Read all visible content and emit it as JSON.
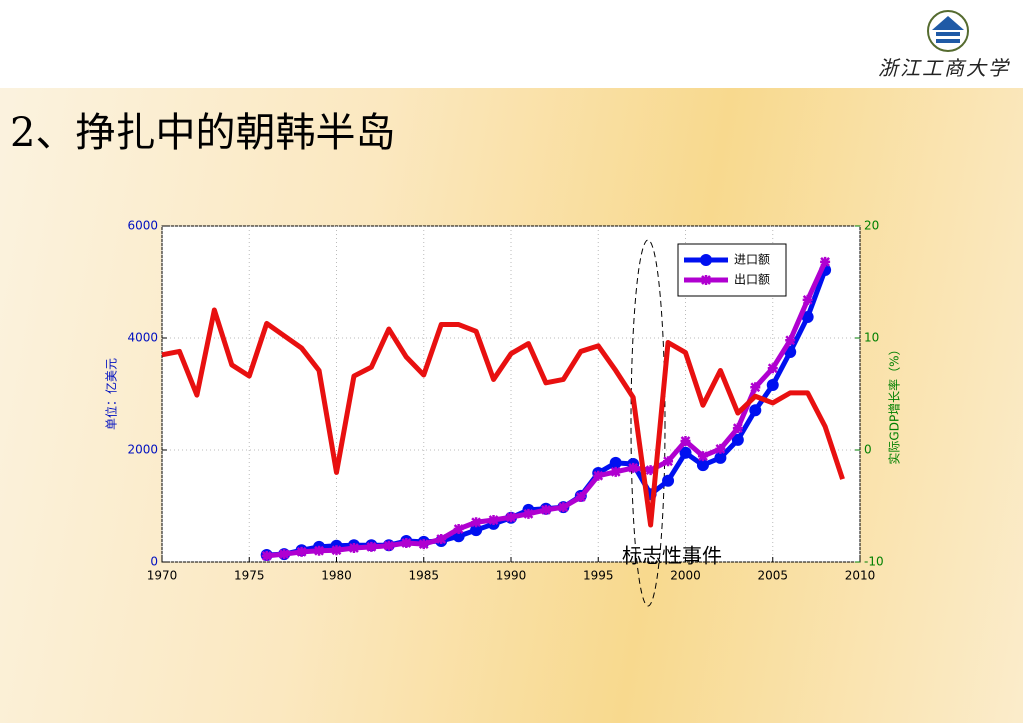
{
  "header": {
    "logo_text": "浙江工商大学"
  },
  "title": "2、挣扎中的朝韩半岛",
  "chart_data": {
    "type": "line",
    "ylabel": "单位：亿美元",
    "y2label": "实际GDP增长率（%）",
    "annotation": "标志性事件",
    "xlim": [
      1970,
      2010
    ],
    "xticks": [
      1970,
      1975,
      1980,
      1985,
      1990,
      1995,
      2000,
      2005,
      2010
    ],
    "ylim": [
      0,
      6000
    ],
    "yticks": [
      0,
      2000,
      4000,
      6000
    ],
    "y2lim": [
      -10,
      20
    ],
    "y2ticks": [
      -10,
      0,
      10,
      20
    ],
    "grid": true,
    "legend": "upper right",
    "series": [
      {
        "name": "进口额",
        "color": "#0010f0",
        "marker": "circle",
        "x": [
          1976,
          1977,
          1978,
          1979,
          1980,
          1981,
          1982,
          1983,
          1984,
          1985,
          1986,
          1987,
          1988,
          1989,
          1990,
          1991,
          1992,
          1993,
          1994,
          1995,
          1996,
          1997,
          1998,
          1999,
          2000,
          2001,
          2002,
          2003,
          2004,
          2005,
          2006,
          2007,
          2008
        ],
        "values": [
          125,
          140,
          210,
          270,
          290,
          300,
          300,
          300,
          375,
          360,
          375,
          460,
          570,
          680,
          790,
          930,
          950,
          980,
          1180,
          1590,
          1770,
          1750,
          1210,
          1450,
          1950,
          1730,
          1860,
          2180,
          2710,
          3160,
          3750,
          4375,
          5214
        ]
      },
      {
        "name": "出口额",
        "color": "#b000d0",
        "marker": "star",
        "x": [
          1976,
          1977,
          1978,
          1979,
          1980,
          1981,
          1982,
          1983,
          1984,
          1985,
          1986,
          1987,
          1988,
          1989,
          1990,
          1991,
          1992,
          1993,
          1994,
          1995,
          1996,
          1997,
          1998,
          1999,
          2000,
          2001,
          2002,
          2003,
          2004,
          2005,
          2006,
          2007,
          2008
        ],
        "values": [
          110,
          140,
          180,
          200,
          210,
          250,
          270,
          290,
          340,
          320,
          410,
          590,
          710,
          750,
          800,
          860,
          930,
          980,
          1160,
          1540,
          1610,
          1680,
          1640,
          1800,
          2160,
          1890,
          2020,
          2390,
          3120,
          3460,
          3960,
          4680,
          5360
        ]
      },
      {
        "color": "#e81010",
        "axis": "y2",
        "x": [
          1970,
          1971,
          1972,
          1973,
          1974,
          1975,
          1976,
          1977,
          1978,
          1979,
          1980,
          1981,
          1982,
          1983,
          1984,
          1985,
          1986,
          1987,
          1988,
          1989,
          1990,
          1991,
          1992,
          1993,
          1994,
          1995,
          1996,
          1997,
          1998,
          1999,
          2000,
          2001,
          2002,
          2003,
          2004,
          2005,
          2006,
          2007,
          2008,
          2009
        ],
        "values": [
          8.5,
          8.8,
          4.9,
          12.5,
          7.6,
          6.6,
          11.3,
          10.2,
          9.1,
          7.1,
          -2.0,
          6.6,
          7.4,
          10.8,
          8.3,
          6.7,
          11.2,
          11.2,
          10.6,
          6.3,
          8.6,
          9.5,
          6.0,
          6.3,
          8.8,
          9.3,
          7.1,
          4.7,
          -6.7,
          9.6,
          8.7,
          4.0,
          7.1,
          3.3,
          4.8,
          4.2,
          5.1,
          5.1,
          2.1,
          -2.6
        ]
      }
    ]
  }
}
